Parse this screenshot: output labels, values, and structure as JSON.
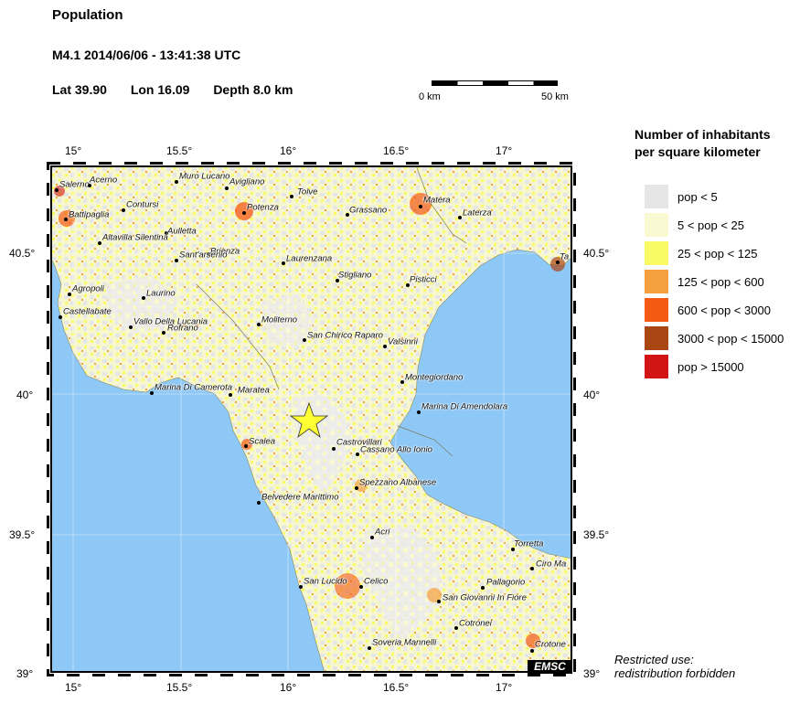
{
  "header": {
    "title": "Population",
    "event": "M4.1  2014/06/06 - 13:41:38 UTC",
    "lat": "Lat 39.90",
    "lon": "Lon  16.09",
    "depth": "Depth  8.0 km"
  },
  "scale": {
    "left": "0 km",
    "right": "50 km"
  },
  "legend": {
    "title_line1": "Number of inhabitants",
    "title_line2": "per square kilometer",
    "items": [
      {
        "label": "pop < 5",
        "color": "#e6e6e6"
      },
      {
        "label": "5 < pop < 25",
        "color": "#fafad2"
      },
      {
        "label": "25 < pop < 125",
        "color": "#fafa64"
      },
      {
        "label": "125 < pop < 600",
        "color": "#f5a03c"
      },
      {
        "label": "600 < pop < 3000",
        "color": "#f55a14"
      },
      {
        "label": "3000 < pop < 15000",
        "color": "#aa4614"
      },
      {
        "label": "pop > 15000",
        "color": "#d21414"
      }
    ]
  },
  "restricted": {
    "line1": "Restricted use:",
    "line2": "redistribution forbidden"
  },
  "badge": "EMSC",
  "axes": {
    "lon_ticks": [
      "15°",
      "15.5°",
      "16°",
      "16.5°",
      "17°"
    ],
    "lat_ticks": [
      "40.5°",
      "40°",
      "39.5°",
      "39°"
    ]
  },
  "epicenter": {
    "lat": 39.9,
    "lon": 16.09
  },
  "colors": {
    "sea": "#8ec8f7",
    "land": "#f4f4c8",
    "star": "#ffff33"
  },
  "cities": [
    {
      "name": "Salerno"
    },
    {
      "name": "Acerno"
    },
    {
      "name": "Muro Lucano"
    },
    {
      "name": "Avigliano"
    },
    {
      "name": "Tolve"
    },
    {
      "name": "Potenza"
    },
    {
      "name": "Contursi"
    },
    {
      "name": "Battipaglia"
    },
    {
      "name": "Grassano"
    },
    {
      "name": "Matera"
    },
    {
      "name": "Laterza"
    },
    {
      "name": "Aulletta"
    },
    {
      "name": "Altavilla Silentina"
    },
    {
      "name": "Brienza"
    },
    {
      "name": "Sant'arsenio"
    },
    {
      "name": "Laurenzana"
    },
    {
      "name": "Stigliano"
    },
    {
      "name": "Pisticci"
    },
    {
      "name": "Agropoli"
    },
    {
      "name": "Laurino"
    },
    {
      "name": "Castellabate"
    },
    {
      "name": "Vallo Della Lucania"
    },
    {
      "name": "Rofrano"
    },
    {
      "name": "Moliterno"
    },
    {
      "name": "San Chirico Raparo"
    },
    {
      "name": "Valsinni"
    },
    {
      "name": "Montegiordano"
    },
    {
      "name": "Marina Di Camerota"
    },
    {
      "name": "Maratea"
    },
    {
      "name": "Marina Di Amendolara"
    },
    {
      "name": "Scalea"
    },
    {
      "name": "Castrovillari"
    },
    {
      "name": "Cassano Allo Ionio"
    },
    {
      "name": "Spezzano Albanese"
    },
    {
      "name": "Belvedere Marittimo"
    },
    {
      "name": "Acri"
    },
    {
      "name": "Torretta"
    },
    {
      "name": "Ciro Ma"
    },
    {
      "name": "San Lucido"
    },
    {
      "name": "Celico"
    },
    {
      "name": "Pallagorio"
    },
    {
      "name": "San Giovanni In Fiore"
    },
    {
      "name": "Cotronei"
    },
    {
      "name": "Soveria Mannelli"
    },
    {
      "name": "Crotone"
    },
    {
      "name": "Ta"
    }
  ]
}
